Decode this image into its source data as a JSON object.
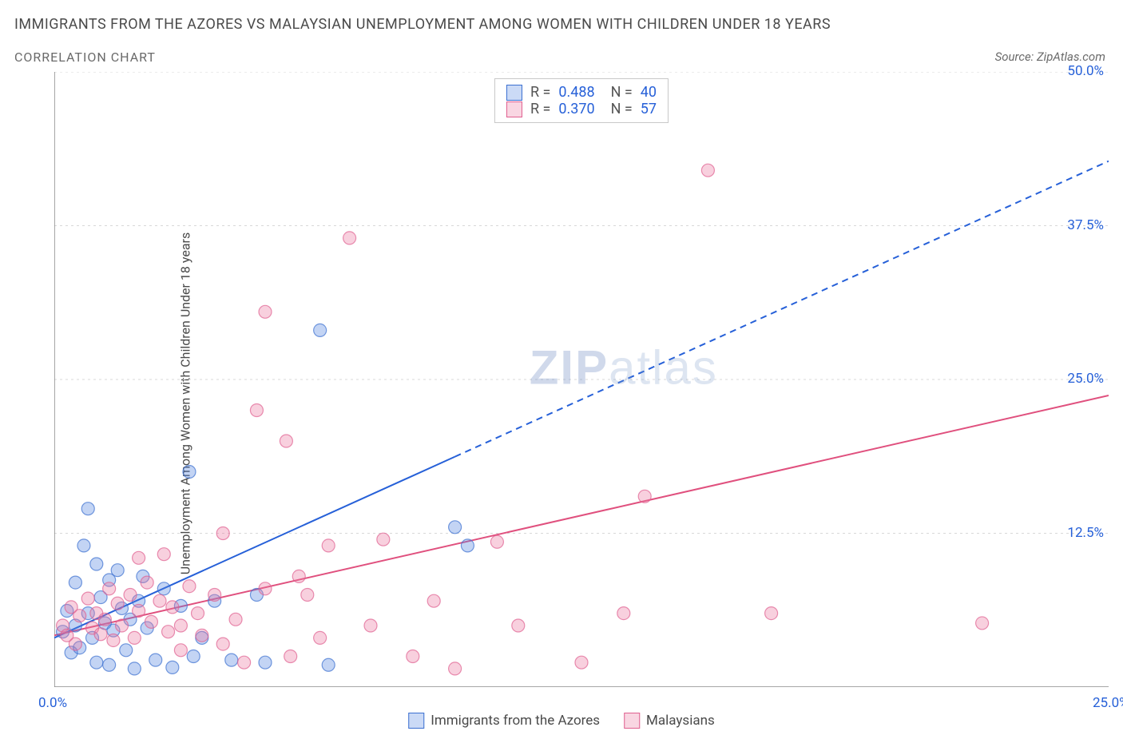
{
  "title": "IMMIGRANTS FROM THE AZORES VS MALAYSIAN UNEMPLOYMENT AMONG WOMEN WITH CHILDREN UNDER 18 YEARS",
  "subtitle": "CORRELATION CHART",
  "source": "Source: ZipAtlas.com",
  "watermark": {
    "part1": "ZIP",
    "part2": "atlas"
  },
  "chart": {
    "type": "scatter",
    "background_color": "#ffffff",
    "grid_color": "#d8d8d8",
    "axis_color": "#888888",
    "ylabel": "Unemployment Among Women with Children Under 18 years",
    "ylabel_fontsize": 16,
    "xlim": [
      0,
      25
    ],
    "ylim": [
      0,
      50
    ],
    "xticks": [
      0,
      2.5,
      5,
      7.5,
      10,
      12.5,
      15,
      17.5,
      20,
      22.5,
      25
    ],
    "xtick_labels": {
      "0": "0.0%",
      "25": "25.0%"
    },
    "ytick_labels": {
      "12.5": "12.5%",
      "25": "25.0%",
      "37.5": "37.5%",
      "50": "50.0%"
    },
    "ygrid_lines": [
      12.5,
      25,
      37.5,
      50
    ],
    "marker_radius": 8,
    "marker_opacity": 0.35,
    "stat_legend": [
      {
        "swatch": "blue",
        "R": "0.488",
        "N": "40"
      },
      {
        "swatch": "pink",
        "R": "0.370",
        "N": "57"
      }
    ],
    "series": [
      {
        "name": "Immigrants from the Azores",
        "color_fill": "#5284e0",
        "color_stroke": "#3b6fd0",
        "trend": {
          "slope": 1.55,
          "intercept": 4.0,
          "solid_xmax": 9.5,
          "dash_xmax": 25,
          "color": "#2660d8",
          "width": 2
        },
        "points": [
          [
            0.2,
            4.5
          ],
          [
            0.3,
            6.2
          ],
          [
            0.4,
            2.8
          ],
          [
            0.5,
            5.0
          ],
          [
            0.5,
            8.5
          ],
          [
            0.6,
            3.2
          ],
          [
            0.7,
            11.5
          ],
          [
            0.8,
            14.5
          ],
          [
            0.8,
            6.0
          ],
          [
            0.9,
            4.0
          ],
          [
            1.0,
            10.0
          ],
          [
            1.0,
            2.0
          ],
          [
            1.1,
            7.3
          ],
          [
            1.2,
            5.2
          ],
          [
            1.3,
            8.7
          ],
          [
            1.3,
            1.8
          ],
          [
            1.4,
            4.6
          ],
          [
            1.5,
            9.5
          ],
          [
            1.6,
            6.4
          ],
          [
            1.7,
            3.0
          ],
          [
            1.8,
            5.5
          ],
          [
            1.9,
            1.5
          ],
          [
            2.0,
            7.0
          ],
          [
            2.1,
            9.0
          ],
          [
            2.2,
            4.8
          ],
          [
            2.4,
            2.2
          ],
          [
            2.6,
            8.0
          ],
          [
            2.8,
            1.6
          ],
          [
            3.0,
            6.6
          ],
          [
            3.2,
            17.5
          ],
          [
            3.3,
            2.5
          ],
          [
            3.5,
            4.0
          ],
          [
            3.8,
            7.0
          ],
          [
            4.2,
            2.2
          ],
          [
            4.8,
            7.5
          ],
          [
            5.0,
            2.0
          ],
          [
            6.3,
            29.0
          ],
          [
            6.5,
            1.8
          ],
          [
            9.5,
            13.0
          ],
          [
            9.8,
            11.5
          ]
        ]
      },
      {
        "name": "Malaysians",
        "color_fill": "#ec78a0",
        "color_stroke": "#e06090",
        "trend": {
          "slope": 0.78,
          "intercept": 4.2,
          "solid_xmax": 25,
          "dash_xmax": 25,
          "color": "#e0507e",
          "width": 2
        },
        "points": [
          [
            0.2,
            5.0
          ],
          [
            0.3,
            4.2
          ],
          [
            0.4,
            6.5
          ],
          [
            0.5,
            3.5
          ],
          [
            0.6,
            5.8
          ],
          [
            0.8,
            7.2
          ],
          [
            0.9,
            4.8
          ],
          [
            1.0,
            6.0
          ],
          [
            1.1,
            4.3
          ],
          [
            1.2,
            5.5
          ],
          [
            1.3,
            8.0
          ],
          [
            1.4,
            3.8
          ],
          [
            1.5,
            6.8
          ],
          [
            1.6,
            5.0
          ],
          [
            1.8,
            7.5
          ],
          [
            1.9,
            4.0
          ],
          [
            2.0,
            10.5
          ],
          [
            2.0,
            6.2
          ],
          [
            2.2,
            8.5
          ],
          [
            2.3,
            5.3
          ],
          [
            2.5,
            7.0
          ],
          [
            2.6,
            10.8
          ],
          [
            2.7,
            4.5
          ],
          [
            2.8,
            6.5
          ],
          [
            3.0,
            5.0
          ],
          [
            3.0,
            3.0
          ],
          [
            3.2,
            8.2
          ],
          [
            3.4,
            6.0
          ],
          [
            3.5,
            4.2
          ],
          [
            3.8,
            7.5
          ],
          [
            4.0,
            3.5
          ],
          [
            4.0,
            12.5
          ],
          [
            4.3,
            5.5
          ],
          [
            4.5,
            2.0
          ],
          [
            4.8,
            22.5
          ],
          [
            5.0,
            8.0
          ],
          [
            5.0,
            30.5
          ],
          [
            5.5,
            20.0
          ],
          [
            5.6,
            2.5
          ],
          [
            5.8,
            9.0
          ],
          [
            6.0,
            7.5
          ],
          [
            6.3,
            4.0
          ],
          [
            6.5,
            11.5
          ],
          [
            7.0,
            36.5
          ],
          [
            7.5,
            5.0
          ],
          [
            7.8,
            12.0
          ],
          [
            8.5,
            2.5
          ],
          [
            9.0,
            7.0
          ],
          [
            9.5,
            1.5
          ],
          [
            10.5,
            11.8
          ],
          [
            11.0,
            5.0
          ],
          [
            12.5,
            2.0
          ],
          [
            13.5,
            6.0
          ],
          [
            14.0,
            15.5
          ],
          [
            15.5,
            42.0
          ],
          [
            17.0,
            6.0
          ],
          [
            22.0,
            5.2
          ]
        ]
      }
    ]
  }
}
